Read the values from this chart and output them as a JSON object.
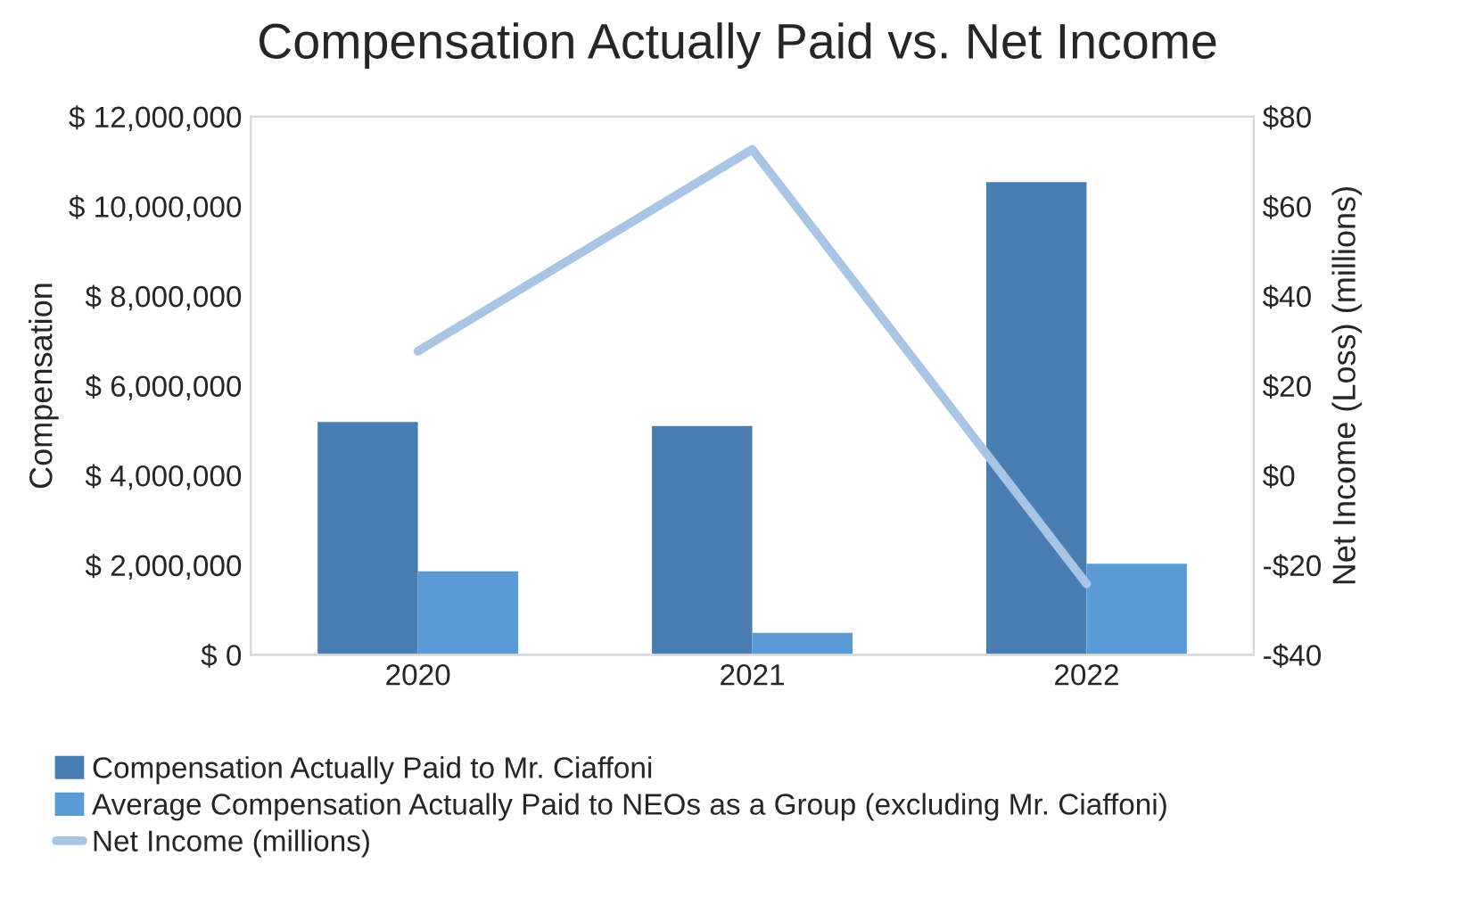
{
  "chart_data": {
    "type": "bar",
    "title": "Compensation Actually Paid vs. Net Income",
    "ylabel": "Compensation",
    "y2label": "Net Income (Loss) (millions)",
    "categories": [
      "2020",
      "2021",
      "2022"
    ],
    "series": [
      {
        "name": "Compensation Actually Paid to Mr. Ciaffoni",
        "color": "#4a7eb3",
        "values": [
          5190000,
          5100000,
          10540000
        ]
      },
      {
        "name": "Average Compensation Actually Paid to NEOs as a Group (excluding Mr. Ciaffoni)",
        "color": "#5b9bd5",
        "values": [
          1860000,
          490000,
          2030000
        ]
      },
      {
        "name": "Net Income (millions)",
        "type": "line",
        "axis": "y2",
        "color": "#a9c5e6",
        "values": [
          27.7,
          72.7,
          -24.2
        ]
      }
    ],
    "ylim": [
      0,
      12000000
    ],
    "yticks": [
      {
        "value": 0,
        "label": "$ 0"
      },
      {
        "value": 2000000,
        "label": "$ 2,000,000"
      },
      {
        "value": 4000000,
        "label": "$ 4,000,000"
      },
      {
        "value": 6000000,
        "label": "$ 6,000,000"
      },
      {
        "value": 8000000,
        "label": "$ 8,000,000"
      },
      {
        "value": 10000000,
        "label": "$ 10,000,000"
      },
      {
        "value": 12000000,
        "label": "$ 12,000,000"
      }
    ],
    "y2lim": [
      -40,
      80
    ],
    "y2ticks": [
      {
        "value": -40,
        "label": "-$40"
      },
      {
        "value": -20,
        "label": "-$20"
      },
      {
        "value": 0,
        "label": "$0"
      },
      {
        "value": 20,
        "label": "$20"
      },
      {
        "value": 40,
        "label": "$40"
      },
      {
        "value": 60,
        "label": "$60"
      },
      {
        "value": 80,
        "label": "$80"
      }
    ],
    "legend": "bottom",
    "grid": false
  }
}
